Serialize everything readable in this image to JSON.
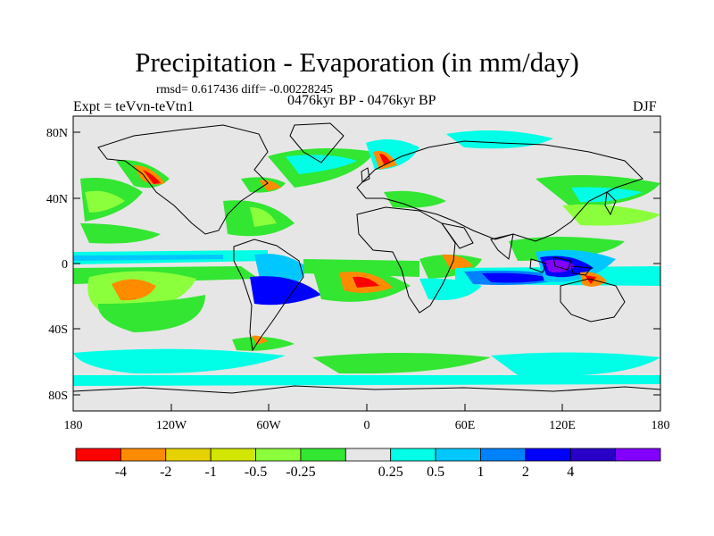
{
  "title": "Precipitation - Evaporation (in mm/day)",
  "stats_line": "rmsd= 0.617436 diff= -0.00228245",
  "experiment": "Expt = teVvn-teVtn1",
  "period": "0476kyr BP - 0476kyr BP",
  "season": "DJF",
  "map": {
    "lat_ticks": [
      "80N",
      "40N",
      "0",
      "40S",
      "80S"
    ],
    "lon_ticks": [
      "180",
      "120W",
      "60W",
      "0",
      "60E",
      "120E",
      "180"
    ],
    "background_color": "#e6e6e6",
    "coastline_color": "#000000"
  },
  "colorbar": {
    "colors": [
      "#ff0000",
      "#ff8c00",
      "#e6d200",
      "#d2e600",
      "#8cff3c",
      "#32e632",
      "#e6e6e6",
      "#00ffe6",
      "#00c8ff",
      "#0082ff",
      "#0000ff",
      "#2800c8",
      "#8200ff"
    ],
    "labels": [
      "-4",
      "-2",
      "-1",
      "-0.5",
      "-0.25",
      "0.25",
      "0.5",
      "1",
      "2",
      "4"
    ]
  }
}
